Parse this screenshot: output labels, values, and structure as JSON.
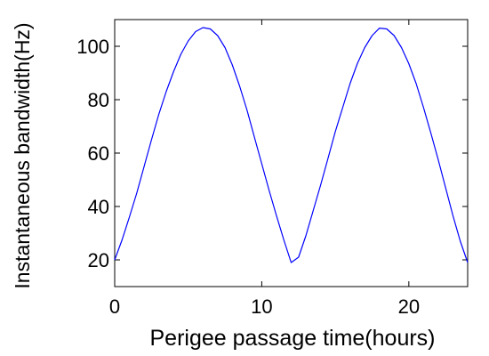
{
  "chart_data": {
    "type": "line",
    "title": "",
    "xlabel": "Perigee passage time(hours)",
    "ylabel": "Instantaneous bandwidth(Hz)",
    "xlim": [
      0,
      24
    ],
    "ylim": [
      10,
      110
    ],
    "xticks": [
      0,
      10,
      20
    ],
    "yticks": [
      20,
      40,
      60,
      80,
      100
    ],
    "xtick_labels": [
      "0",
      "10",
      "20"
    ],
    "ytick_labels": [
      "20",
      "40",
      "60",
      "80",
      "100"
    ],
    "grid": false,
    "legend": "none",
    "series": [
      {
        "color": "#0000ff",
        "x": [
          0,
          0.5,
          1,
          1.5,
          2,
          2.5,
          3,
          3.5,
          4,
          4.5,
          5,
          5.5,
          6,
          6.5,
          7,
          7.5,
          8,
          8.5,
          9,
          9.5,
          10,
          10.5,
          11,
          11.5,
          12,
          12.5,
          13,
          13.5,
          14,
          14.5,
          15,
          15.5,
          16,
          16.5,
          17,
          17.5,
          18,
          18.5,
          19,
          19.5,
          20,
          20.5,
          21,
          21.5,
          22,
          22.5,
          23,
          23.5,
          24
        ],
        "y": [
          20,
          27.5,
          36,
          45,
          55,
          65,
          74.5,
          83,
          90.5,
          97,
          102,
          105.5,
          107,
          106.5,
          104,
          99.5,
          93,
          85,
          76,
          66,
          56,
          46,
          36.5,
          27.5,
          19,
          21,
          29,
          38.5,
          48,
          58,
          68,
          77,
          86,
          93.5,
          99.5,
          104,
          106.8,
          106.5,
          104,
          99.5,
          93.5,
          86,
          77,
          67.5,
          57.5,
          47,
          36.5,
          27,
          19
        ]
      }
    ]
  }
}
